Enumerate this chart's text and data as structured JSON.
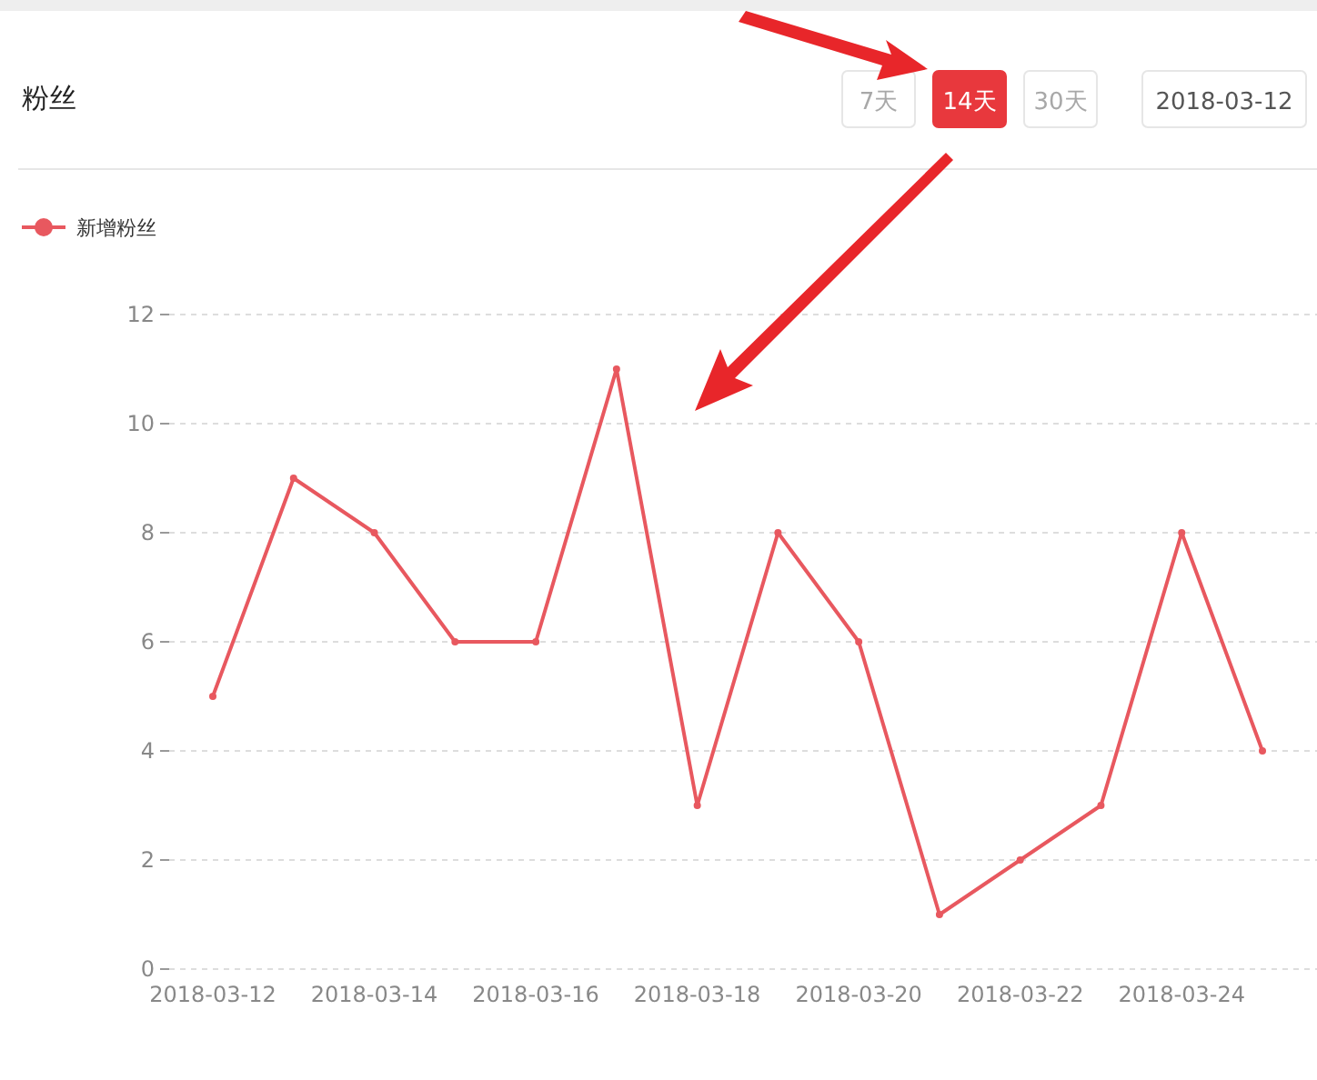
{
  "chart_data": {
    "type": "line",
    "title": "粉丝",
    "annotations": [
      "7天",
      "14天",
      "30天",
      "2018-03-12"
    ],
    "categories": [
      "2018-03-12",
      null,
      "2018-03-14",
      null,
      "2018-03-16",
      null,
      "2018-03-18",
      null,
      "2018-03-20",
      null,
      "2018-03-22",
      null,
      "2018-03-24",
      null
    ],
    "series": [
      {
        "name": "新增粉丝",
        "color": "#e8585f",
        "values": [
          5,
          9,
          8,
          6,
          6,
          11,
          3,
          8,
          6,
          1,
          2,
          3,
          8,
          4
        ]
      }
    ],
    "ylim": [
      0,
      12
    ],
    "yticks": [
      0,
      2,
      4,
      6,
      8,
      10,
      12
    ],
    "grid": "y",
    "legend": "top left",
    "marker": "circle",
    "line_style": "solid"
  }
}
